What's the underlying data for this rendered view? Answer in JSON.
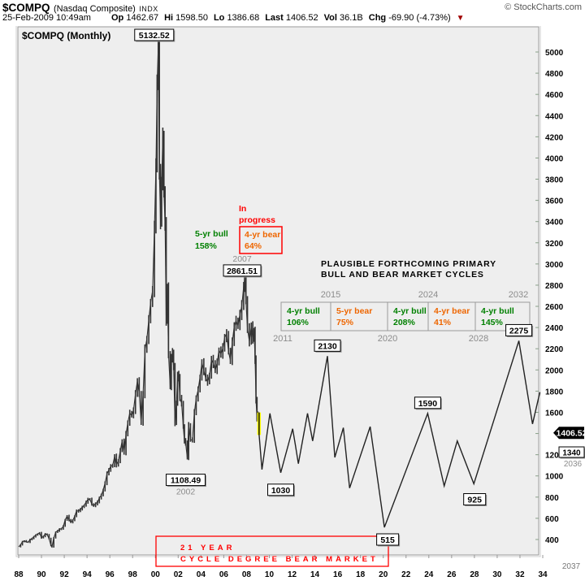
{
  "header": {
    "symbol": "$COMPQ",
    "name": "(Nasdaq Composite)",
    "exchange": "INDX",
    "watermark": "© StockCharts.com",
    "datetime": "25-Feb-2009 10:49am",
    "quote": [
      {
        "label": "Op",
        "value": "1462.67"
      },
      {
        "label": "Hi",
        "value": "1598.50"
      },
      {
        "label": "Lo",
        "value": "1386.68"
      },
      {
        "label": "Last",
        "value": "1406.52"
      },
      {
        "label": "Vol",
        "value": "36.1B"
      },
      {
        "label": "Chg",
        "value": "-69.90 (-4.73%)"
      }
    ],
    "change_direction": "down",
    "down_triangle": "▼"
  },
  "chart_label": "$COMPQ (Monthly)",
  "last_price_tag": "1406.52",
  "annotations": {
    "in_progress": [
      "In",
      "progress"
    ],
    "prior_bull": {
      "label": "5-yr bull",
      "pct": "158%"
    },
    "current_bear": {
      "label": "4-yr bear",
      "pct": "64%"
    },
    "forecast_title": [
      "PLAUSIBLE FORTHCOMING PRIMARY",
      "BULL AND BEAR MARKET CYCLES"
    ],
    "future_low": {
      "price": "1340",
      "year": "2036"
    },
    "final_year": "2037"
  },
  "bear_market_box": {
    "line1": "21 YEAR",
    "line2": "CYCLE DEGREE BEAR MARKET"
  },
  "cycle_table": {
    "years_above": [
      "2015",
      "2024",
      "2032"
    ],
    "years_below": [
      "2011",
      "2020",
      "2028"
    ],
    "cells": [
      {
        "label": "4-yr bull",
        "pct": "106%",
        "type": "bull"
      },
      {
        "label": "5-yr bear",
        "pct": "75%",
        "type": "bear"
      },
      {
        "label": "4-yr bull",
        "pct": "208%",
        "type": "bull"
      },
      {
        "label": "4-yr bear",
        "pct": "41%",
        "type": "bear"
      },
      {
        "label": "4-yr bull",
        "pct": "145%",
        "type": "bull"
      }
    ]
  },
  "palette": {
    "bull_green": "#008000",
    "bear_orange": "#ee6600",
    "annotation_red": "#ff0000",
    "gray_label": "#8c8c8c",
    "plot_bg": "#eeeeee",
    "bar_color": "#333333",
    "highlight_yellow": "#ffff00",
    "tag_black": "#000000"
  },
  "chart_data": {
    "type": "line",
    "title": "$COMPQ (Monthly)",
    "x_axis": {
      "start_year": 1988,
      "end_year": 2034,
      "label_interval_years": 2,
      "tick_labels": [
        "88",
        "90",
        "92",
        "94",
        "96",
        "98",
        "00",
        "02",
        "04",
        "06",
        "08",
        "10",
        "12",
        "14",
        "16",
        "18",
        "20",
        "22",
        "24",
        "26",
        "28",
        "30",
        "32",
        "34"
      ]
    },
    "y_axis": {
      "min": 400,
      "max": 5000,
      "tick_step": 200,
      "grid": false
    },
    "series": [
      {
        "name": "history",
        "points": [
          [
            1988.0,
            331
          ],
          [
            1988.17,
            351
          ],
          [
            1988.33,
            379
          ],
          [
            1988.5,
            387
          ],
          [
            1988.67,
            378
          ],
          [
            1988.83,
            373
          ],
          [
            1989.0,
            401
          ],
          [
            1989.17,
            408
          ],
          [
            1989.33,
            427
          ],
          [
            1989.5,
            441
          ],
          [
            1989.67,
            453
          ],
          [
            1989.83,
            462
          ],
          [
            1990.0,
            416
          ],
          [
            1990.17,
            430
          ],
          [
            1990.33,
            452
          ],
          [
            1990.5,
            445
          ],
          [
            1990.67,
            408
          ],
          [
            1990.83,
            344
          ],
          [
            1990.92,
            330
          ],
          [
            1991.08,
            414
          ],
          [
            1991.25,
            470
          ],
          [
            1991.42,
            482
          ],
          [
            1991.58,
            496
          ],
          [
            1991.75,
            502
          ],
          [
            1991.92,
            526
          ],
          [
            1992.08,
            586
          ],
          [
            1992.25,
            620
          ],
          [
            1992.42,
            585
          ],
          [
            1992.58,
            563
          ],
          [
            1992.75,
            580
          ],
          [
            1992.92,
            621
          ],
          [
            1993.08,
            671
          ],
          [
            1993.25,
            668
          ],
          [
            1993.42,
            687
          ],
          [
            1993.58,
            705
          ],
          [
            1993.75,
            722
          ],
          [
            1993.92,
            754
          ],
          [
            1994.08,
            777
          ],
          [
            1994.25,
            780
          ],
          [
            1994.42,
            733
          ],
          [
            1994.58,
            717
          ],
          [
            1994.75,
            738
          ],
          [
            1994.92,
            752
          ],
          [
            1995.08,
            793
          ],
          [
            1995.25,
            817
          ],
          [
            1995.42,
            868
          ],
          [
            1995.58,
            933
          ],
          [
            1995.75,
            1020
          ],
          [
            1995.92,
            1059
          ],
          [
            1996.08,
            1090
          ],
          [
            1996.25,
            1101
          ],
          [
            1996.42,
            1185
          ],
          [
            1996.58,
            1104
          ],
          [
            1996.75,
            1142
          ],
          [
            1996.92,
            1239
          ],
          [
            1997.08,
            1330
          ],
          [
            1997.25,
            1221
          ],
          [
            1997.42,
            1394
          ],
          [
            1997.58,
            1502
          ],
          [
            1997.75,
            1594
          ],
          [
            1997.92,
            1570
          ],
          [
            1998.08,
            1619
          ],
          [
            1998.25,
            1771
          ],
          [
            1998.42,
            1895
          ],
          [
            1998.58,
            1780
          ],
          [
            1998.75,
            1499
          ],
          [
            1998.92,
            1771
          ],
          [
            1999.08,
            2193
          ],
          [
            1999.25,
            2288
          ],
          [
            1999.42,
            2470
          ],
          [
            1999.58,
            2638
          ],
          [
            1999.75,
            2746
          ],
          [
            1999.92,
            3336
          ],
          [
            2000.05,
            3940
          ],
          [
            2000.15,
            4697
          ],
          [
            2000.25,
            5049
          ],
          [
            2000.35,
            3861
          ],
          [
            2000.45,
            3401
          ],
          [
            2000.55,
            3767
          ],
          [
            2000.65,
            4206
          ],
          [
            2000.75,
            3672
          ],
          [
            2000.85,
            3370
          ],
          [
            2000.95,
            2471
          ],
          [
            2001.05,
            2773
          ],
          [
            2001.15,
            2152
          ],
          [
            2001.3,
            1840
          ],
          [
            2001.4,
            2116
          ],
          [
            2001.5,
            2160
          ],
          [
            2001.6,
            2027
          ],
          [
            2001.72,
            1498
          ],
          [
            2001.85,
            1690
          ],
          [
            2001.95,
            1950
          ],
          [
            2002.05,
            1934
          ],
          [
            2002.15,
            1731
          ],
          [
            2002.3,
            1688
          ],
          [
            2002.45,
            1463
          ],
          [
            2002.55,
            1328
          ],
          [
            2002.65,
            1315
          ],
          [
            2002.8,
            1172
          ],
          [
            2002.92,
            1480
          ],
          [
            2003.08,
            1338
          ],
          [
            2003.25,
            1341
          ],
          [
            2003.42,
            1596
          ],
          [
            2003.58,
            1735
          ],
          [
            2003.75,
            1810
          ],
          [
            2003.92,
            1932
          ],
          [
            2004.08,
            2066
          ],
          [
            2004.25,
            1994
          ],
          [
            2004.42,
            1920
          ],
          [
            2004.58,
            1887
          ],
          [
            2004.75,
            1950
          ],
          [
            2004.92,
            2097
          ],
          [
            2005.08,
            2062
          ],
          [
            2005.25,
            1999
          ],
          [
            2005.42,
            2068
          ],
          [
            2005.58,
            2185
          ],
          [
            2005.75,
            2152
          ],
          [
            2005.92,
            2205
          ],
          [
            2006.08,
            2306
          ],
          [
            2006.25,
            2340
          ],
          [
            2006.42,
            2172
          ],
          [
            2006.58,
            2091
          ],
          [
            2006.75,
            2258
          ],
          [
            2006.92,
            2415
          ],
          [
            2007.08,
            2464
          ],
          [
            2007.25,
            2416
          ],
          [
            2007.42,
            2525
          ],
          [
            2007.58,
            2603
          ],
          [
            2007.75,
            2790
          ],
          [
            2007.83,
            2859
          ],
          [
            2007.95,
            2652
          ],
          [
            2008.08,
            2389
          ],
          [
            2008.25,
            2271
          ],
          [
            2008.42,
            2413
          ],
          [
            2008.55,
            2293
          ],
          [
            2008.67,
            2368
          ],
          [
            2008.75,
            2092
          ],
          [
            2008.83,
            1721
          ],
          [
            2008.92,
            1536
          ],
          [
            2009.0,
            1577
          ],
          [
            2009.1,
            1406.52
          ]
        ],
        "labeled_points": [
          {
            "label": "5132.52",
            "year": 2000.25,
            "value": 5132.52,
            "placement": "top"
          },
          {
            "label": "2861.51",
            "year": 2007.83,
            "value": 2861.51,
            "placement": "above",
            "sub_label": "2007"
          },
          {
            "label": "1108.49",
            "year": 2002.8,
            "value": 1108.49,
            "placement": "below",
            "sub_label": "2002"
          }
        ]
      },
      {
        "name": "projected_cycle_path",
        "points": [
          [
            2009.1,
            1390
          ],
          [
            2009.35,
            1060
          ],
          [
            2010.05,
            1590
          ],
          [
            2011.0,
            1030
          ],
          [
            2012.05,
            1445
          ],
          [
            2012.3,
            1285
          ],
          [
            2012.55,
            1115
          ],
          [
            2013.35,
            1590
          ],
          [
            2013.8,
            1330
          ],
          [
            2015.1,
            2130
          ],
          [
            2015.75,
            1175
          ],
          [
            2016.5,
            1455
          ],
          [
            2017.05,
            885
          ],
          [
            2018.85,
            1465
          ],
          [
            2020.1,
            515
          ],
          [
            2023.9,
            1590
          ],
          [
            2025.35,
            905
          ],
          [
            2026.5,
            1330
          ],
          [
            2027.95,
            925
          ],
          [
            2031.9,
            2275
          ],
          [
            2033.1,
            1490
          ],
          [
            2033.75,
            1790
          ]
        ],
        "labeled_points": [
          {
            "label": "1030",
            "year": 2011.0,
            "value": 1030,
            "placement": "below"
          },
          {
            "label": "2130",
            "year": 2015.1,
            "value": 2130,
            "placement": "above"
          },
          {
            "label": "515",
            "year": 2020.1,
            "value": 515,
            "placement": "below"
          },
          {
            "label": "1590",
            "year": 2023.9,
            "value": 1590,
            "placement": "above"
          },
          {
            "label": "925",
            "year": 2027.95,
            "value": 925,
            "placement": "below"
          },
          {
            "label": "2275",
            "year": 2031.9,
            "value": 2275,
            "placement": "above"
          }
        ]
      }
    ],
    "current_bar": {
      "year": 2009.1,
      "high": 1598.5,
      "low": 1386.68,
      "last": 1406.52
    }
  }
}
